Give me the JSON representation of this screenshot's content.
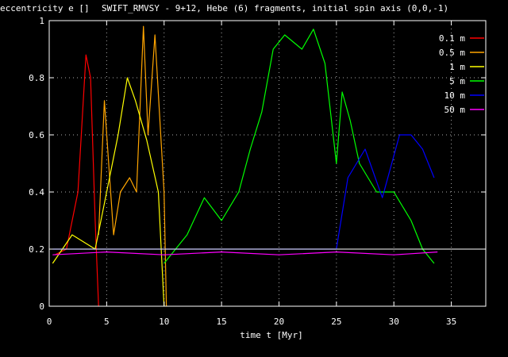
{
  "chart_data": {
    "type": "line",
    "title": "SWIFT_RMVSY - 9+12, Hebe (6) fragments, initial spin axis (0,0,-1)",
    "ylabel": "eccentricity e []",
    "xlabel": "time t [Myr]",
    "xlim": [
      0,
      38
    ],
    "ylim": [
      0,
      1
    ],
    "xticks": [
      "0",
      "5",
      "10",
      "15",
      "20",
      "25",
      "30",
      "35"
    ],
    "yticks": [
      "0",
      "0.2",
      "0.4",
      "0.6",
      "0.8",
      "1"
    ],
    "grid": true,
    "legend_position": "top-right",
    "reference_line": {
      "y": 0.2,
      "color": "#ffffff"
    },
    "series": [
      {
        "name": "0.1 m",
        "color": "#ff0000",
        "x": [
          0.5,
          1.5,
          2.5,
          3.2,
          3.6,
          4.0,
          4.3
        ],
        "y": [
          0.18,
          0.2,
          0.4,
          0.88,
          0.8,
          0.3,
          0.0
        ]
      },
      {
        "name": "0.5 m",
        "color": "#ffa500",
        "x": [
          4.3,
          4.8,
          5.6,
          6.2,
          7.0,
          7.6,
          8.2,
          8.6,
          9.2,
          10.0,
          10.2
        ],
        "y": [
          0.25,
          0.72,
          0.25,
          0.4,
          0.45,
          0.4,
          0.98,
          0.6,
          0.95,
          0.4,
          0.0
        ]
      },
      {
        "name": "1 m",
        "color": "#ffff00",
        "x": [
          0.3,
          2.0,
          4.0,
          5.0,
          6.0,
          6.8,
          7.5,
          8.5,
          9.5,
          10.0
        ],
        "y": [
          0.15,
          0.25,
          0.2,
          0.4,
          0.6,
          0.8,
          0.72,
          0.58,
          0.4,
          0.0
        ]
      },
      {
        "name": "5 m",
        "color": "#00ff00",
        "x": [
          10.0,
          12.0,
          13.5,
          15.0,
          16.5,
          17.5,
          18.5,
          19.5,
          20.5,
          22.0,
          23.0,
          24.0,
          25.0,
          25.5,
          26.2,
          27.0,
          28.5,
          30.0,
          31.5,
          32.5,
          33.5
        ],
        "y": [
          0.15,
          0.25,
          0.38,
          0.3,
          0.4,
          0.55,
          0.68,
          0.9,
          0.95,
          0.9,
          0.97,
          0.85,
          0.5,
          0.75,
          0.65,
          0.5,
          0.4,
          0.4,
          0.3,
          0.2,
          0.15
        ]
      },
      {
        "name": "10 m",
        "color": "#0000ff",
        "x": [
          0.3,
          5.0,
          10.0,
          15.0,
          20.0,
          25.0,
          26.0,
          27.5,
          29.0,
          30.5,
          31.5,
          32.5,
          33.5
        ],
        "y": [
          0.2,
          0.2,
          0.2,
          0.2,
          0.2,
          0.2,
          0.45,
          0.55,
          0.38,
          0.6,
          0.6,
          0.55,
          0.45
        ]
      },
      {
        "name": "50 m",
        "color": "#ff00ff",
        "x": [
          0.3,
          5.0,
          10.0,
          15.0,
          20.0,
          25.0,
          30.0,
          33.8
        ],
        "y": [
          0.18,
          0.19,
          0.18,
          0.19,
          0.18,
          0.19,
          0.18,
          0.19
        ]
      }
    ]
  }
}
